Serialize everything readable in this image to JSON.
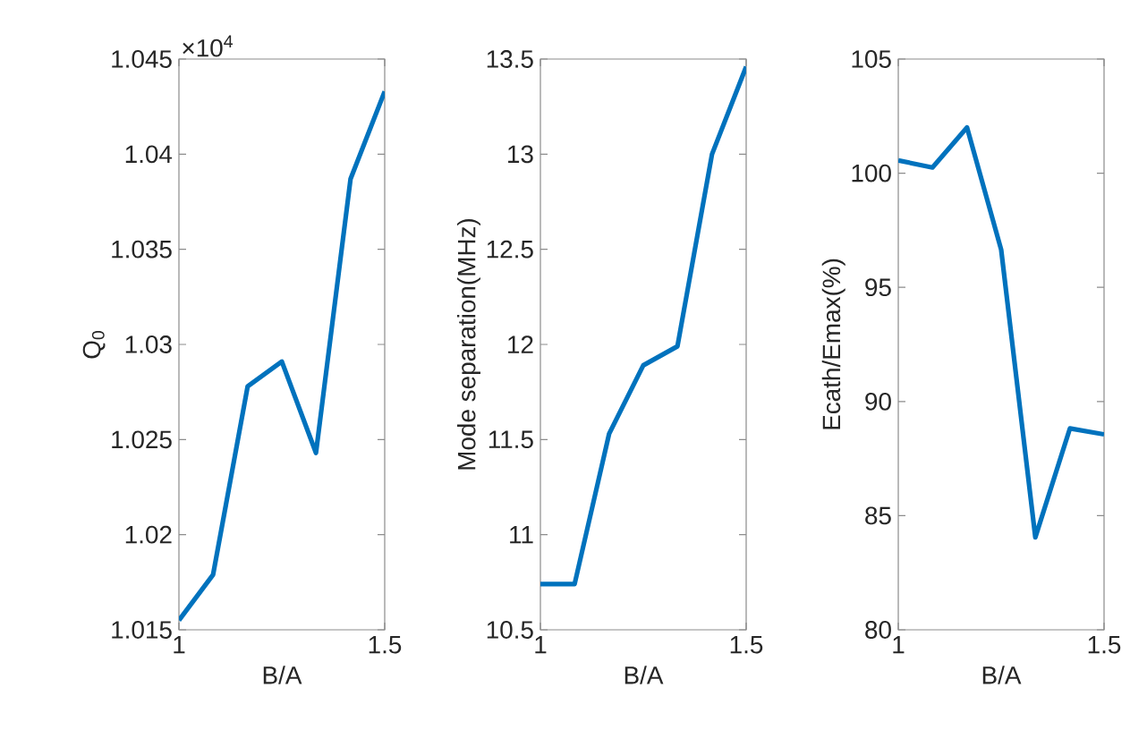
{
  "chart_data": [
    {
      "type": "line",
      "xlabel": "B/A",
      "ylabel": "Q$_{0}$",
      "annotations": [
        "×10$^{4}$"
      ],
      "x": [
        1,
        1.083,
        1.167,
        1.25,
        1.333,
        1.417,
        1.5
      ],
      "series": [
        {
          "color": "#0072bd",
          "values": [
            1.0155,
            1.0179,
            1.0278,
            1.0291,
            1.0243,
            1.0387,
            1.0433
          ]
        }
      ],
      "xlim": [
        1,
        1.5
      ],
      "xticks": [
        1,
        1.5
      ],
      "ylim": [
        1.015,
        1.045
      ],
      "yticks": [
        1.015,
        1.02,
        1.025,
        1.03,
        1.035,
        1.04,
        1.045
      ],
      "marker": "none",
      "line_style": "solid"
    },
    {
      "type": "line",
      "xlabel": "B/A",
      "ylabel": "Mode separation(MHz)",
      "x": [
        1,
        1.083,
        1.167,
        1.25,
        1.333,
        1.417,
        1.5
      ],
      "series": [
        {
          "color": "#0072bd",
          "values": [
            10.74,
            10.74,
            11.53,
            11.89,
            11.99,
            13.0,
            13.46
          ]
        }
      ],
      "xlim": [
        1,
        1.5
      ],
      "xticks": [
        1,
        1.5
      ],
      "ylim": [
        10.5,
        13.5
      ],
      "yticks": [
        10.5,
        11,
        11.5,
        12,
        12.5,
        13,
        13.5
      ],
      "marker": "none",
      "line_style": "solid"
    },
    {
      "type": "line",
      "xlabel": "B/A",
      "ylabel": "Ecath/Emax(%)",
      "x": [
        1,
        1.083,
        1.167,
        1.25,
        1.333,
        1.417,
        1.5
      ],
      "series": [
        {
          "color": "#0072bd",
          "values": [
            100.56,
            100.25,
            102.0,
            96.65,
            84.05,
            88.82,
            88.56
          ]
        }
      ],
      "xlim": [
        1,
        1.5
      ],
      "xticks": [
        1,
        1.5
      ],
      "ylim": [
        80,
        105
      ],
      "yticks": [
        80,
        85,
        90,
        95,
        100,
        105
      ],
      "marker": "none",
      "line_style": "solid"
    }
  ]
}
